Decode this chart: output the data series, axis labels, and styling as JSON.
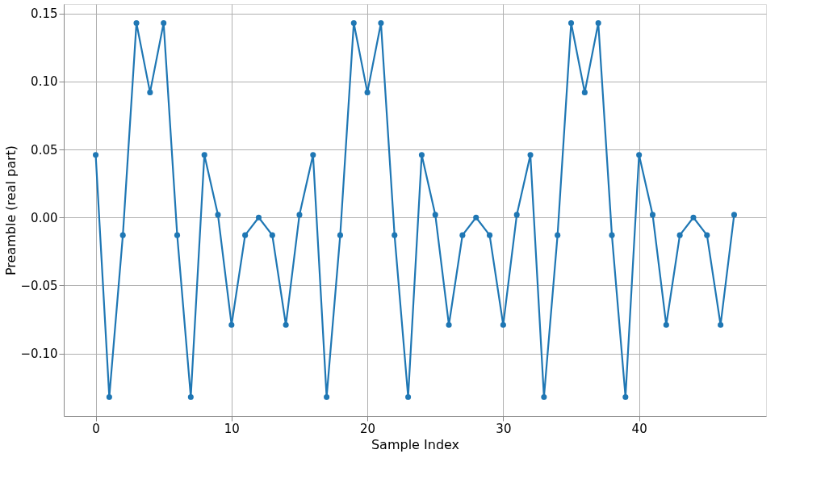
{
  "chart_data": {
    "type": "line",
    "xlabel": "Sample Index",
    "ylabel": "Preamble (real part)",
    "x": [
      0,
      1,
      2,
      3,
      4,
      5,
      6,
      7,
      8,
      9,
      10,
      11,
      12,
      13,
      14,
      15,
      16,
      17,
      18,
      19,
      20,
      21,
      22,
      23,
      24,
      25,
      26,
      27,
      28,
      29,
      30,
      31,
      32,
      33,
      34,
      35,
      36,
      37,
      38,
      39,
      40,
      41,
      42,
      43,
      44,
      45,
      46,
      47
    ],
    "series": [
      {
        "color": "#1f77b4",
        "values": [
          0.046,
          -0.132,
          -0.013,
          0.143,
          0.092,
          0.143,
          -0.013,
          -0.132,
          0.046,
          0.002,
          -0.079,
          -0.013,
          0.0,
          -0.013,
          -0.079,
          0.002,
          0.046,
          -0.132,
          -0.013,
          0.143,
          0.092,
          0.143,
          -0.013,
          -0.132,
          0.046,
          0.002,
          -0.079,
          -0.013,
          0.0,
          -0.013,
          -0.079,
          0.002,
          0.046,
          -0.132,
          -0.013,
          0.143,
          0.092,
          0.143,
          -0.013,
          -0.132,
          0.046,
          0.002,
          -0.079,
          -0.013,
          0.0,
          -0.013,
          -0.079,
          0.002
        ]
      }
    ],
    "xlim": [
      -2.35,
      49.35
    ],
    "ylim": [
      -0.146,
      0.157
    ],
    "xticks": [
      0,
      10,
      20,
      30,
      40
    ],
    "yticks": [
      {
        "value": -0.1,
        "label": "−0.10"
      },
      {
        "value": -0.05,
        "label": "−0.05"
      },
      {
        "value": 0,
        "label": "0.00"
      },
      {
        "value": 0.05,
        "label": "0.05"
      },
      {
        "value": 0.1,
        "label": "0.10"
      },
      {
        "value": 0.15,
        "label": "0.15"
      }
    ],
    "grid": true,
    "marker": "circle",
    "line_style": "solid"
  }
}
